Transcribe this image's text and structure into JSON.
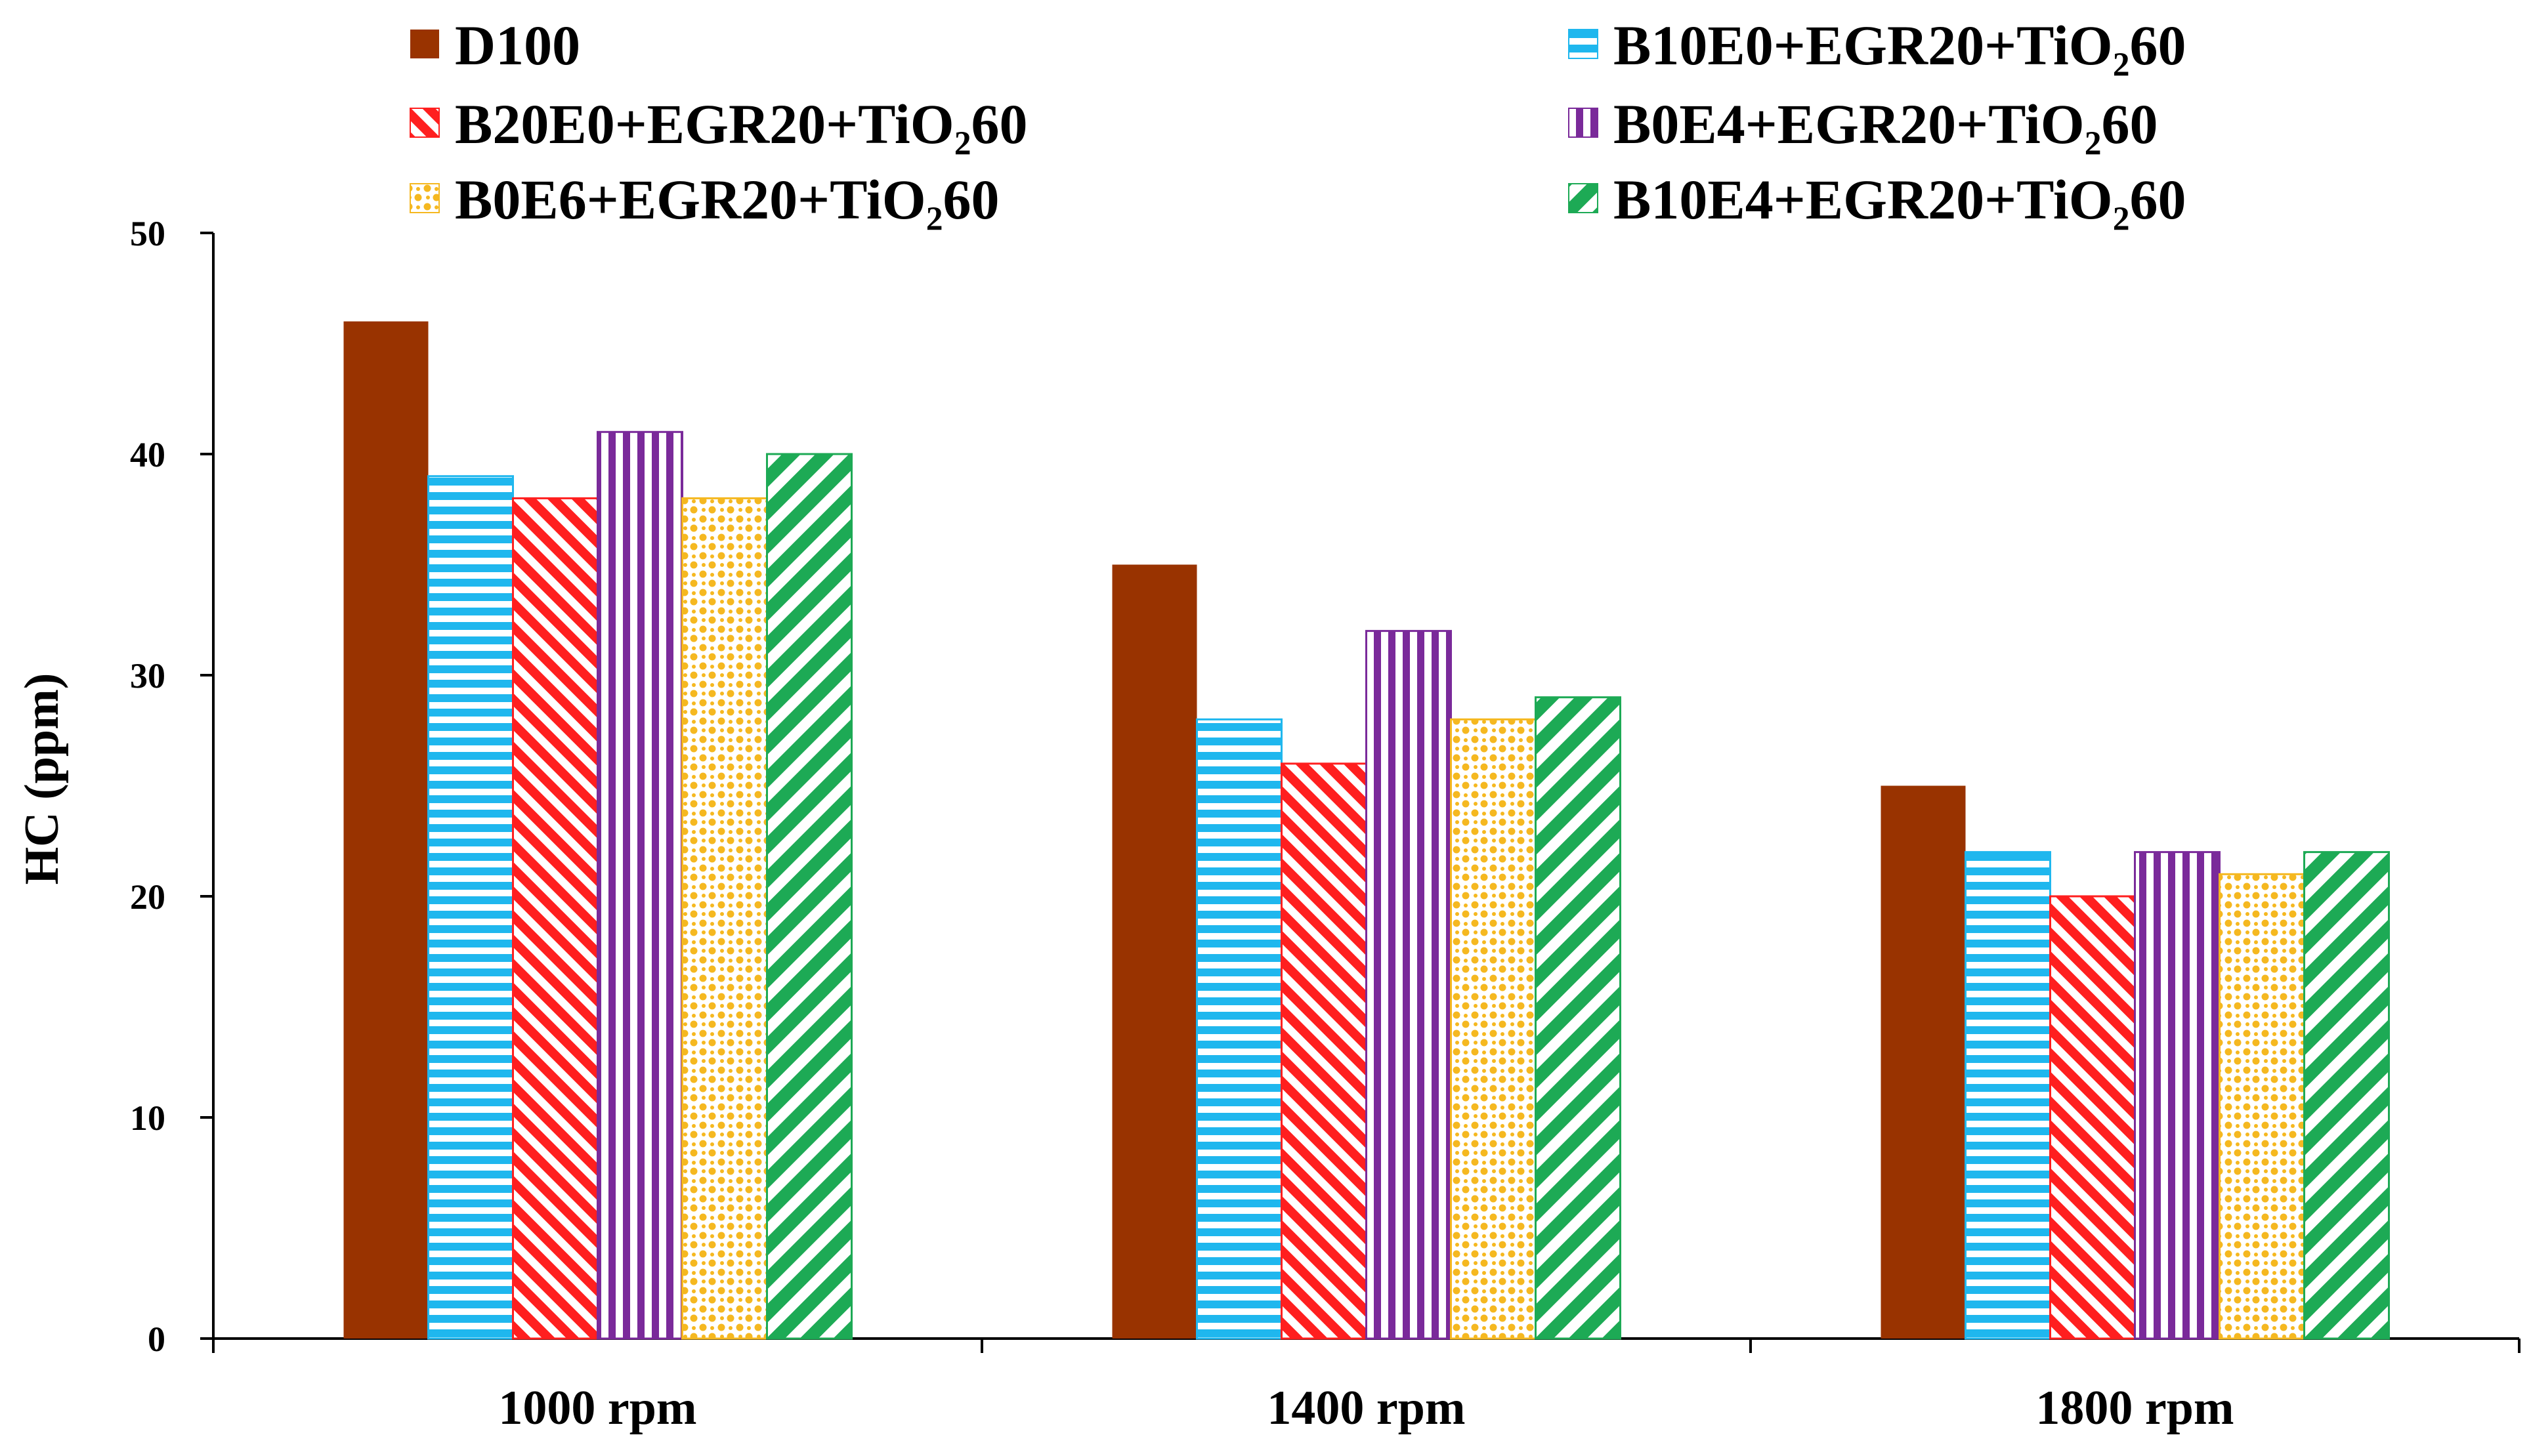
{
  "chart_data": {
    "type": "bar",
    "title": "",
    "xlabel": "",
    "ylabel": "HC (ppm)",
    "ylim": [
      0,
      50
    ],
    "yticks": [
      0,
      10,
      20,
      30,
      40,
      50
    ],
    "grid": false,
    "legend_position": "top",
    "categories": [
      "1000 rpm",
      "1400 rpm",
      "1800 rpm"
    ],
    "series": [
      {
        "name": "D100",
        "values": [
          46,
          35,
          25
        ],
        "color": "#993300",
        "pattern": "solid"
      },
      {
        "name": "B10E0+EGR20+TiO₂60",
        "values": [
          39,
          28,
          22
        ],
        "color": "#1FB7EE",
        "pattern": "horizontal"
      },
      {
        "name": "B20E0+EGR20+TiO₂60",
        "values": [
          38,
          26,
          20
        ],
        "color": "#FF1F1F",
        "pattern": "diagonal"
      },
      {
        "name": "B0E4+EGR20+TiO₂60",
        "values": [
          41,
          32,
          22
        ],
        "color": "#7A2A9A",
        "pattern": "vertical"
      },
      {
        "name": "B0E6+EGR20+TiO₂60",
        "values": [
          38,
          28,
          21
        ],
        "color": "#F5B820",
        "pattern": "dots"
      },
      {
        "name": "B10E4+EGR20+TiO₂60",
        "values": [
          40,
          29,
          22
        ],
        "color": "#1DAA55",
        "pattern": "wide-diagonal"
      }
    ]
  }
}
